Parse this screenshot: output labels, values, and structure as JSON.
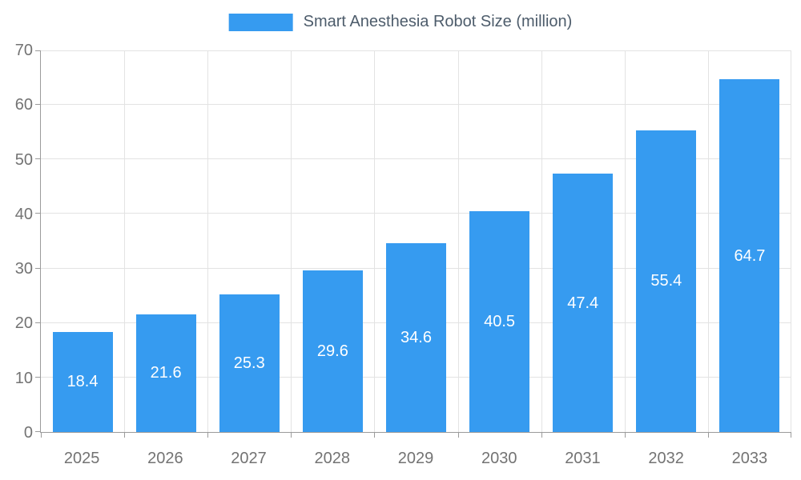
{
  "chart_data": {
    "type": "bar",
    "title": "Smart Anesthesia Robot Size (million)",
    "categories": [
      "2025",
      "2026",
      "2027",
      "2028",
      "2029",
      "2030",
      "2031",
      "2032",
      "2033"
    ],
    "values": [
      18.4,
      21.6,
      25.3,
      29.6,
      34.6,
      40.5,
      47.4,
      55.4,
      64.7
    ],
    "xlabel": "",
    "ylabel": "",
    "ylim": [
      0,
      70
    ],
    "ytick_step": 10,
    "grid": true,
    "legend_position": "top-center",
    "colors": {
      "bar": "#369bf0",
      "axis": "#9b9b9b",
      "gridline": "#e3e3e3",
      "tick_label": "#737373",
      "legend_text": "#4d5c6b",
      "value_label": "#ffffff",
      "background": "#ffffff"
    }
  }
}
